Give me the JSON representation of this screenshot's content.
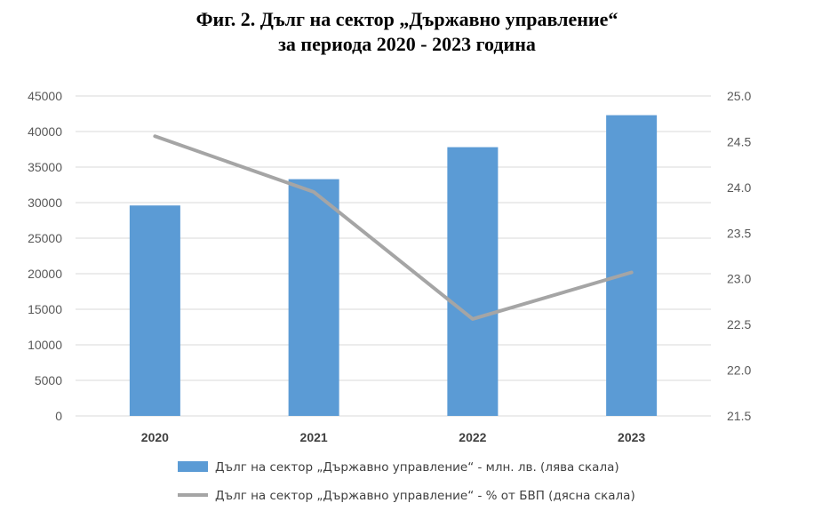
{
  "chart_data": {
    "type": "bar",
    "title_line1": "Фиг. 2. Дълг на сектор „Държавно управление“",
    "title_line2": "за периода 2020 - 2023 година",
    "categories": [
      "2020",
      "2021",
      "2022",
      "2023"
    ],
    "series": [
      {
        "name": "Дълг на сектор „Държавно управление“ - млн. лв. (лява скала)",
        "type": "bar",
        "axis": "left",
        "color": "#5b9bd5",
        "values": [
          29600,
          33300,
          37800,
          42300
        ]
      },
      {
        "name": "Дълг на сектор „Държавно управление“ - % от БВП (дясна скала)",
        "type": "line",
        "axis": "right",
        "color": "#a5a5a5",
        "values": [
          24.56,
          23.95,
          22.56,
          23.07
        ]
      }
    ],
    "y_left": {
      "min": 0,
      "max": 45000,
      "ticks": [
        "0",
        "5000",
        "10000",
        "15000",
        "20000",
        "25000",
        "30000",
        "35000",
        "40000",
        "45000"
      ]
    },
    "y_right": {
      "min": 21.5,
      "max": 25.0,
      "ticks": [
        "21.5",
        "22.0",
        "22.5",
        "23.0",
        "23.5",
        "24.0",
        "24.5",
        "25.0"
      ]
    },
    "grid": true,
    "legend_position": "bottom"
  }
}
